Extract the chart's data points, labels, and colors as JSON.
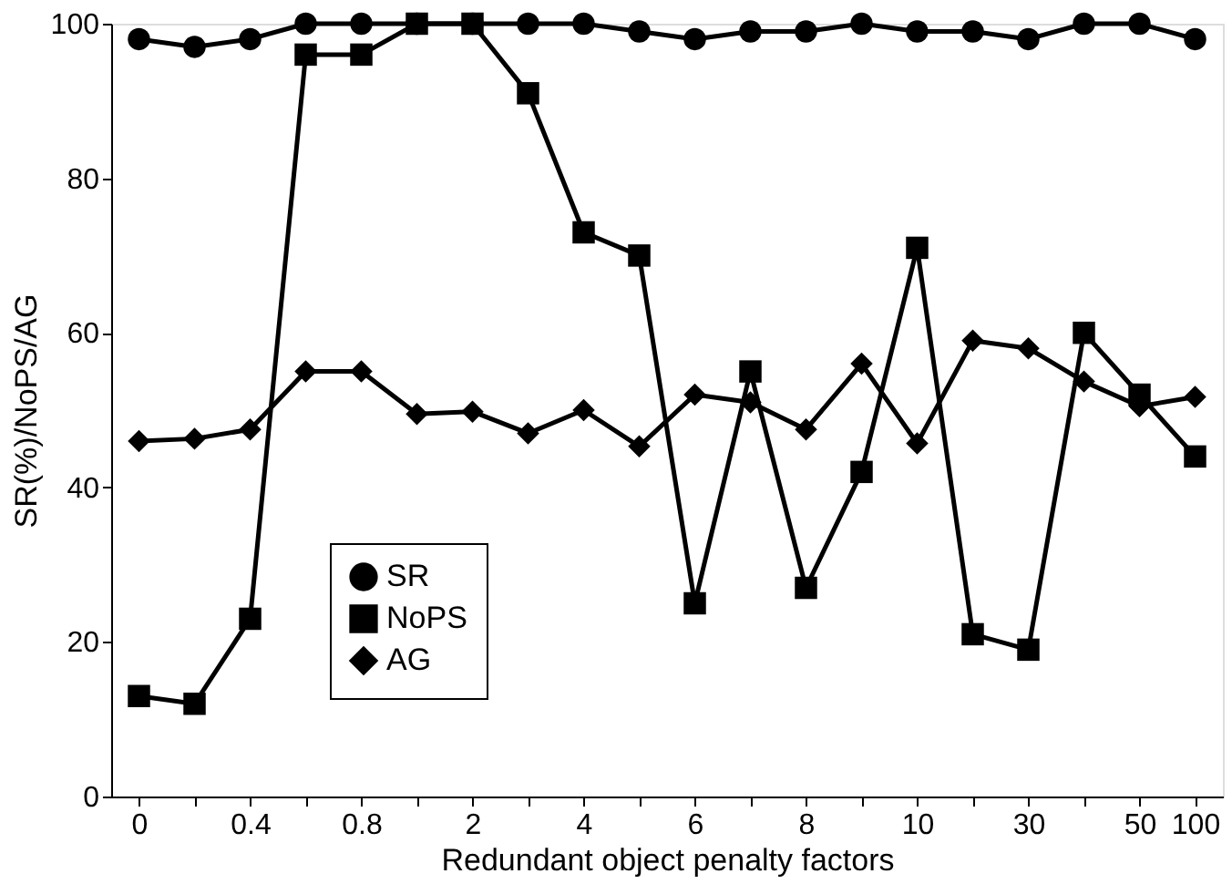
{
  "chart_data": {
    "type": "line",
    "xlabel": "Redundant object penalty factors",
    "ylabel": "SR(%)/NoPS/AG",
    "categories": [
      "0",
      null,
      "0.4",
      null,
      "0.8",
      null,
      "2",
      null,
      "4",
      null,
      "6",
      null,
      "8",
      null,
      "10",
      null,
      "30",
      null,
      "50",
      "100"
    ],
    "ylim": [
      0,
      100
    ],
    "yticks": [
      0,
      20,
      40,
      60,
      80,
      100
    ],
    "grid": false,
    "legend": "bottom left",
    "line_style": "solid",
    "series": [
      {
        "name": "SR",
        "color": "#000000",
        "marker": "circle",
        "values": [
          98,
          97,
          98,
          100,
          100,
          100,
          100,
          100,
          100,
          99,
          98,
          99,
          99,
          100,
          99,
          99,
          98,
          100,
          100,
          98
        ]
      },
      {
        "name": "NoPS",
        "color": "#000000",
        "marker": "square",
        "values": [
          13,
          12,
          23,
          96,
          96,
          100,
          100,
          91,
          73,
          70,
          25,
          55,
          27,
          42,
          71,
          21,
          19,
          60,
          52,
          44
        ]
      },
      {
        "name": "AG",
        "color": "#000000",
        "marker": "diamond",
        "values": [
          46,
          46.3,
          47.5,
          55,
          55,
          49.5,
          49.8,
          47,
          50,
          45.3,
          52,
          51,
          47.5,
          56,
          45.7,
          59,
          58,
          53.7,
          50.5,
          51.7
        ]
      }
    ]
  }
}
